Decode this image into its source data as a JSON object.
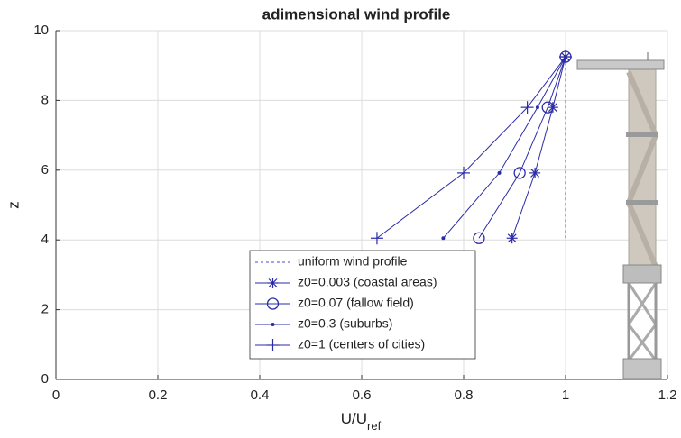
{
  "chart_data": {
    "type": "line",
    "title": "adimensional wind profile",
    "xlabel": {
      "text": "U/U",
      "subscript": "ref"
    },
    "ylabel": "z",
    "xlim": [
      0,
      1.2
    ],
    "xticks": [
      0,
      0.2,
      0.4,
      0.6,
      0.8,
      1,
      1.2
    ],
    "ylim": [
      0,
      10
    ],
    "yticks": [
      0,
      2,
      4,
      6,
      8,
      10
    ],
    "grid": true,
    "legend": "lower center",
    "series": [
      {
        "name": "uniform wind profile",
        "color": "#4a4ad0",
        "linestyle": "dashed",
        "marker": "none",
        "x": [
          1,
          1,
          1,
          1
        ],
        "values": [
          4.05,
          5.92,
          7.8,
          9.25
        ]
      },
      {
        "name": "z0=0.003 (coastal areas)",
        "color": "#2b2ba8",
        "linestyle": "solid",
        "marker": "*",
        "x": [
          0.895,
          0.94,
          0.975,
          1
        ],
        "values": [
          4.05,
          5.92,
          7.8,
          9.25
        ]
      },
      {
        "name": "z0=0.07 (fallow field)",
        "color": "#2b2ba8",
        "linestyle": "solid",
        "marker": "o",
        "x": [
          0.83,
          0.91,
          0.965,
          1
        ],
        "values": [
          4.05,
          5.92,
          7.8,
          9.25
        ]
      },
      {
        "name": "z0=0.3 (suburbs)",
        "color": "#2b2ba8",
        "linestyle": "solid",
        "marker": ".",
        "x": [
          0.76,
          0.87,
          0.945,
          1
        ],
        "values": [
          4.05,
          5.92,
          7.8,
          9.25
        ]
      },
      {
        "name": "z0=1 (centers of cities)",
        "color": "#2b2ba8",
        "linestyle": "solid",
        "marker": "+",
        "x": [
          0.63,
          0.8,
          0.925,
          1
        ],
        "values": [
          4.05,
          5.92,
          7.8,
          9.25
        ]
      }
    ]
  }
}
